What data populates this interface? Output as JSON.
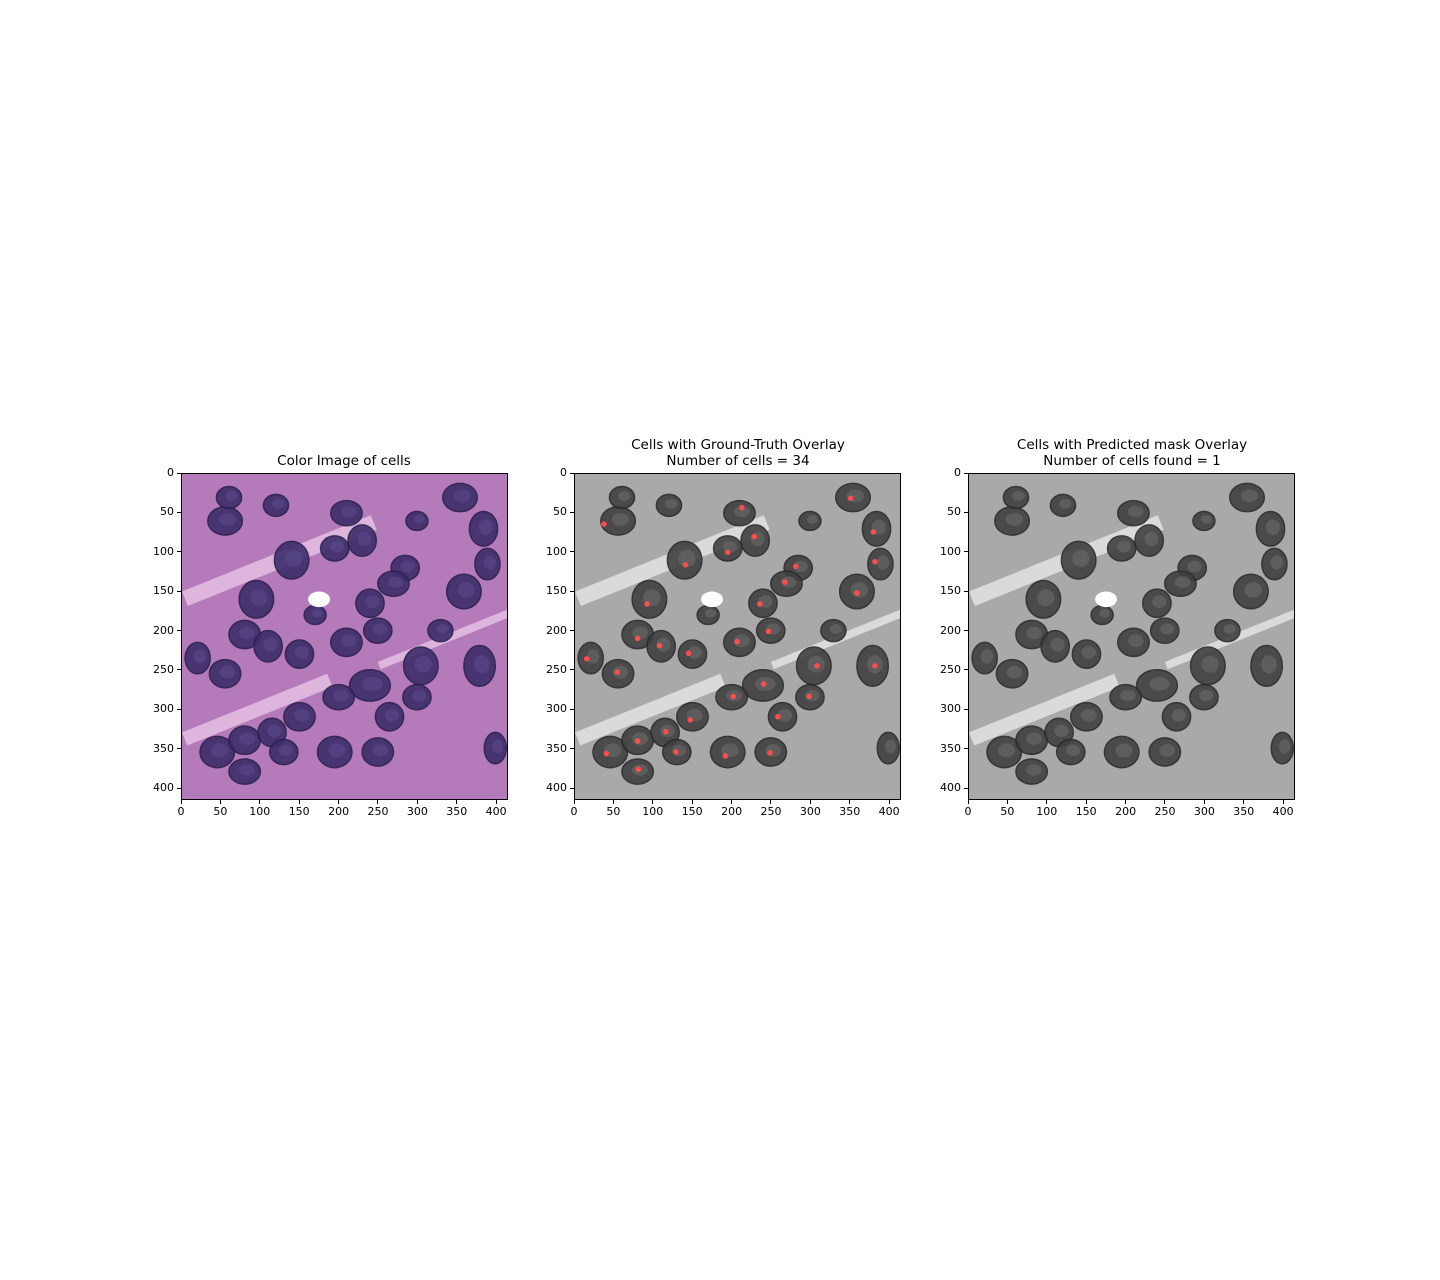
{
  "panels": [
    {
      "title_line1": "Color Image of cells",
      "title_line2": "",
      "image_style": "color",
      "show_markers": false
    },
    {
      "title_line1": "Cells with Ground-Truth Overlay",
      "title_line2": "Number of cells = 34",
      "image_style": "grayscale",
      "show_markers": true
    },
    {
      "title_line1": "Cells with Predicted mask Overlay",
      "title_line2": "Number of cells found = 1",
      "image_style": "grayscale",
      "show_markers": false
    }
  ],
  "axes": {
    "x_ticks": [
      "0",
      "50",
      "100",
      "150",
      "200",
      "250",
      "300",
      "350",
      "400"
    ],
    "y_ticks": [
      "0",
      "50",
      "100",
      "150",
      "200",
      "250",
      "300",
      "350",
      "400"
    ],
    "range": [
      0,
      415
    ]
  },
  "chart_data": {
    "type": "scatter",
    "title": "Cells with Ground-Truth Overlay",
    "xlim": [
      0,
      415
    ],
    "ylim": [
      415,
      0
    ],
    "marker_color": "#ff4d4d",
    "points": [
      [
        37,
        64
      ],
      [
        213,
        43
      ],
      [
        229,
        80
      ],
      [
        352,
        31
      ],
      [
        381,
        74
      ],
      [
        195,
        100
      ],
      [
        141,
        116
      ],
      [
        282,
        118
      ],
      [
        383,
        112
      ],
      [
        268,
        138
      ],
      [
        92,
        166
      ],
      [
        236,
        166
      ],
      [
        360,
        152
      ],
      [
        80,
        210
      ],
      [
        108,
        219
      ],
      [
        207,
        214
      ],
      [
        247,
        201
      ],
      [
        15,
        236
      ],
      [
        54,
        253
      ],
      [
        145,
        229
      ],
      [
        309,
        245
      ],
      [
        383,
        245
      ],
      [
        241,
        268
      ],
      [
        202,
        284
      ],
      [
        299,
        284
      ],
      [
        147,
        314
      ],
      [
        259,
        310
      ],
      [
        40,
        357
      ],
      [
        80,
        341
      ],
      [
        116,
        329
      ],
      [
        129,
        355
      ],
      [
        81,
        377
      ],
      [
        192,
        360
      ],
      [
        249,
        356
      ]
    ]
  },
  "colors": {
    "he_background": "#b57ab9",
    "he_nucleus": "#3c2d6a",
    "gray_background": "#a9a9a9",
    "gray_nucleus": "#404040"
  }
}
